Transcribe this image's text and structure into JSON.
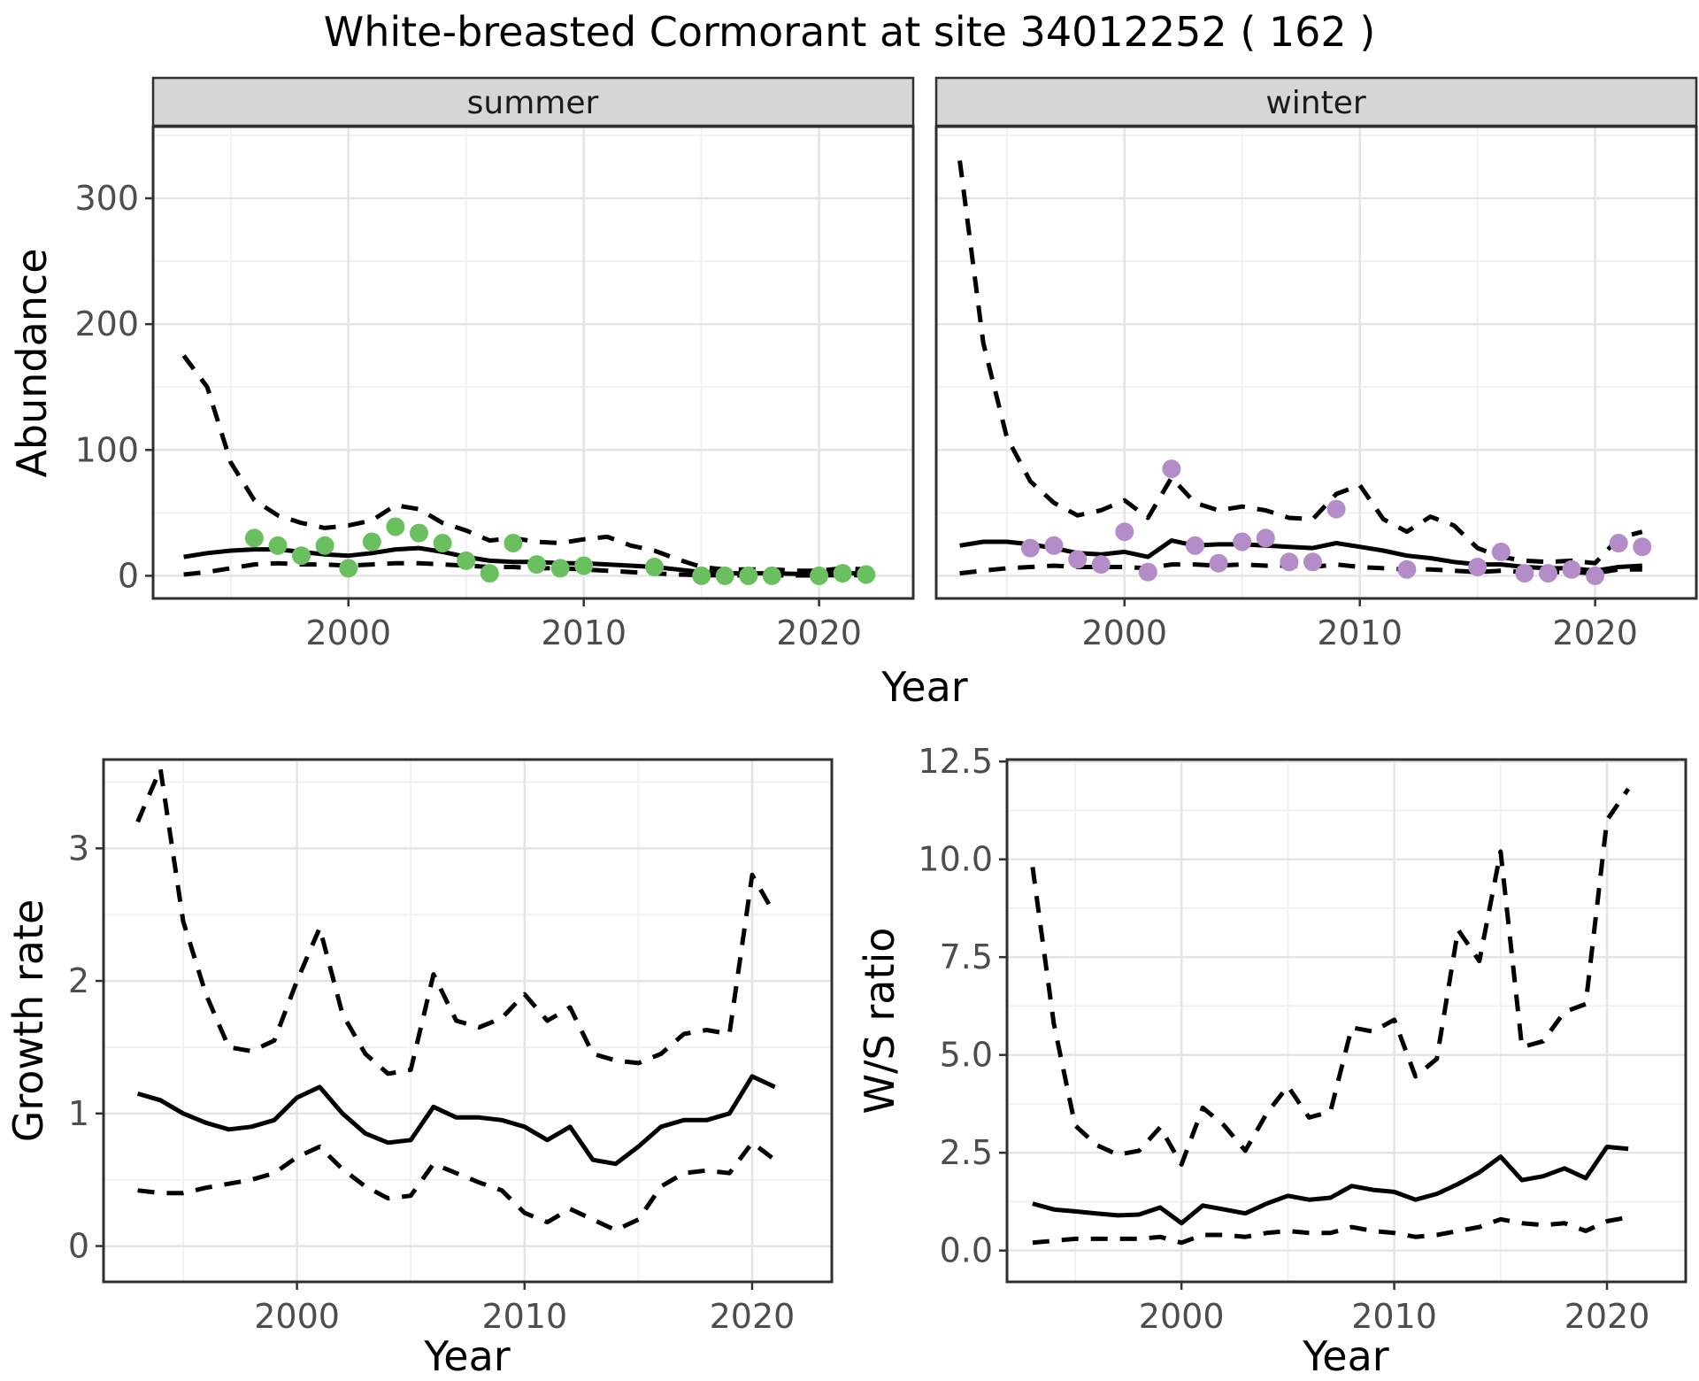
{
  "title": "White-breasted Cormorant at site 34012252 ( 162 )",
  "axes": {
    "abundance": "Abundance",
    "year": "Year",
    "growth_rate": "Growth rate",
    "ws_ratio": "W/S ratio"
  },
  "facets": {
    "summer": "summer",
    "winter": "winter"
  },
  "colors": {
    "summer_point": "#6abf5f",
    "winter_point": "#b48cc8",
    "line": "#000000",
    "strip_bg": "#d6d6d6",
    "panel_border": "#2f2f2f",
    "grid_major": "#e4e4e4",
    "grid_minor": "#f1f1f1",
    "tick_text": "#4d4d4d"
  },
  "chart_data": [
    {
      "id": "abundance_summer",
      "type": "line",
      "facet_label": "summer",
      "xlabel": "Year",
      "ylabel": "Abundance",
      "xlim": [
        1991.7,
        2024
      ],
      "ylim": [
        -18,
        357
      ],
      "grid": true,
      "legend": "none",
      "xticks": {
        "values": [
          2000,
          2010,
          2020
        ],
        "labels": [
          "2000",
          "2010",
          "2020"
        ]
      },
      "yticks": {
        "values": [
          0,
          100,
          200,
          300
        ],
        "labels": [
          "0",
          "100",
          "200",
          "300"
        ]
      },
      "x": [
        1993,
        1994,
        1995,
        1996,
        1997,
        1998,
        1999,
        2000,
        2001,
        2002,
        2003,
        2004,
        2005,
        2006,
        2007,
        2008,
        2009,
        2010,
        2011,
        2012,
        2013,
        2014,
        2015,
        2016,
        2017,
        2018,
        2019,
        2020,
        2021,
        2022
      ],
      "series": [
        {
          "name": "upper_ci",
          "style": "dashed",
          "values": [
            175,
            150,
            90,
            60,
            48,
            42,
            38,
            40,
            44,
            56,
            53,
            42,
            36,
            28,
            30,
            27,
            26,
            29,
            31,
            24,
            20,
            13,
            7,
            5,
            5,
            5,
            4,
            4,
            6,
            5
          ]
        },
        {
          "name": "mean",
          "style": "solid",
          "values": [
            15,
            18,
            20,
            21,
            21,
            19,
            17,
            16,
            18,
            21,
            22,
            19,
            15,
            12,
            11,
            11,
            10,
            10,
            9,
            8,
            7,
            5,
            3,
            2,
            2,
            2,
            1.5,
            1.5,
            2,
            2
          ]
        },
        {
          "name": "lower_ci",
          "style": "dashed",
          "values": [
            1,
            3,
            6,
            9,
            10,
            9,
            9,
            8,
            9,
            10,
            10,
            9,
            8,
            7,
            7,
            6,
            6,
            5,
            4,
            3,
            2,
            1,
            0.5,
            0.3,
            0.3,
            0.3,
            0.3,
            0.3,
            0.5,
            0.4
          ]
        }
      ],
      "points": {
        "color": "#6abf5f",
        "x": [
          1996,
          1997,
          1998,
          1999,
          2000,
          2001,
          2002,
          2003,
          2004,
          2005,
          2006,
          2007,
          2008,
          2009,
          2010,
          2013,
          2015,
          2016,
          2017,
          2018,
          2020,
          2021,
          2022
        ],
        "y": [
          30,
          24,
          16,
          24,
          6,
          27,
          39,
          34,
          26,
          12,
          2,
          26,
          9,
          6,
          8,
          7,
          0,
          0,
          0,
          0,
          0,
          2,
          1
        ]
      }
    },
    {
      "id": "abundance_winter",
      "type": "line",
      "facet_label": "winter",
      "xlabel": "Year",
      "ylabel": "Abundance",
      "xlim": [
        1992,
        2024.3
      ],
      "ylim": [
        -18,
        357
      ],
      "grid": true,
      "legend": "none",
      "xticks": {
        "values": [
          2000,
          2010,
          2020
        ],
        "labels": [
          "2000",
          "2010",
          "2020"
        ]
      },
      "yticks": {
        "values": [
          0,
          100,
          200,
          300
        ],
        "labels": [
          "0",
          "100",
          "200",
          "300"
        ]
      },
      "x": [
        1993,
        1994,
        1995,
        1996,
        1997,
        1998,
        1999,
        2000,
        2001,
        2002,
        2003,
        2004,
        2005,
        2006,
        2007,
        2008,
        2009,
        2010,
        2011,
        2012,
        2013,
        2014,
        2015,
        2016,
        2017,
        2018,
        2019,
        2020,
        2021,
        2022
      ],
      "series": [
        {
          "name": "upper_ci",
          "style": "dashed",
          "values": [
            330,
            185,
            110,
            75,
            58,
            48,
            52,
            60,
            46,
            78,
            58,
            52,
            55,
            52,
            46,
            45,
            65,
            72,
            45,
            35,
            47,
            40,
            22,
            15,
            12,
            11,
            12,
            10,
            30,
            35
          ]
        },
        {
          "name": "mean",
          "style": "solid",
          "values": [
            24,
            27,
            27,
            25,
            22,
            18,
            17,
            19,
            15,
            28,
            24,
            25,
            25,
            24,
            23,
            22,
            26,
            23,
            20,
            16,
            14,
            11,
            9,
            9,
            7,
            6,
            6,
            4,
            7,
            8
          ]
        },
        {
          "name": "lower_ci",
          "style": "dashed",
          "values": [
            2,
            4,
            6,
            7,
            8,
            7,
            7,
            7,
            6,
            9,
            9,
            8,
            9,
            8,
            8,
            7,
            9,
            7,
            6,
            5,
            5,
            4,
            3,
            4,
            3,
            3,
            3,
            2,
            5,
            5
          ]
        }
      ],
      "points": {
        "color": "#b48cc8",
        "x": [
          1996,
          1997,
          1998,
          1999,
          2000,
          2001,
          2002,
          2003,
          2004,
          2005,
          2006,
          2007,
          2008,
          2009,
          2012,
          2015,
          2016,
          2017,
          2018,
          2019,
          2020,
          2021,
          2022
        ],
        "y": [
          22,
          24,
          13,
          9,
          35,
          3,
          85,
          24,
          10,
          27,
          30,
          11,
          11,
          53,
          5,
          7,
          19,
          2,
          2,
          5,
          0,
          26,
          23
        ]
      }
    },
    {
      "id": "growth_rate",
      "type": "line",
      "xlabel": "Year",
      "ylabel": "Growth rate",
      "xlim": [
        1991.5,
        2023.5
      ],
      "ylim": [
        -0.27,
        3.67
      ],
      "grid": true,
      "legend": "none",
      "xticks": {
        "values": [
          2000,
          2010,
          2020
        ],
        "labels": [
          "2000",
          "2010",
          "2020"
        ]
      },
      "yticks": {
        "values": [
          0,
          1,
          2,
          3
        ],
        "labels": [
          "0",
          "1",
          "2",
          "3"
        ]
      },
      "x": [
        1993,
        1994,
        1995,
        1996,
        1997,
        1998,
        1999,
        2000,
        2001,
        2002,
        2003,
        2004,
        2005,
        2006,
        2007,
        2008,
        2009,
        2010,
        2011,
        2012,
        2013,
        2014,
        2015,
        2016,
        2017,
        2018,
        2019,
        2020,
        2021
      ],
      "series": [
        {
          "name": "upper_ci",
          "style": "dashed",
          "values": [
            3.2,
            3.6,
            2.45,
            1.9,
            1.5,
            1.47,
            1.55,
            2.0,
            2.4,
            1.75,
            1.45,
            1.3,
            1.33,
            2.05,
            1.7,
            1.65,
            1.72,
            1.9,
            1.7,
            1.8,
            1.45,
            1.4,
            1.38,
            1.45,
            1.6,
            1.63,
            1.6,
            2.8,
            2.5
          ]
        },
        {
          "name": "mean",
          "style": "solid",
          "values": [
            1.15,
            1.1,
            1.0,
            0.93,
            0.88,
            0.9,
            0.95,
            1.12,
            1.2,
            1.0,
            0.85,
            0.78,
            0.8,
            1.05,
            0.97,
            0.97,
            0.95,
            0.9,
            0.8,
            0.9,
            0.65,
            0.62,
            0.75,
            0.9,
            0.95,
            0.95,
            1.0,
            1.28,
            1.2
          ]
        },
        {
          "name": "lower_ci",
          "style": "dashed",
          "values": [
            0.42,
            0.4,
            0.4,
            0.44,
            0.47,
            0.5,
            0.55,
            0.67,
            0.75,
            0.58,
            0.45,
            0.36,
            0.38,
            0.62,
            0.55,
            0.48,
            0.42,
            0.25,
            0.18,
            0.28,
            0.2,
            0.12,
            0.2,
            0.45,
            0.55,
            0.57,
            0.55,
            0.78,
            0.65
          ]
        }
      ]
    },
    {
      "id": "ws_ratio",
      "type": "line",
      "xlabel": "Year",
      "ylabel": "W/S ratio",
      "xlim": [
        1991.8,
        2023.7
      ],
      "ylim": [
        -0.8,
        12.55
      ],
      "grid": true,
      "legend": "none",
      "xticks": {
        "values": [
          2000,
          2010,
          2020
        ],
        "labels": [
          "2000",
          "2010",
          "2020"
        ]
      },
      "yticks": {
        "values": [
          0,
          2.5,
          5,
          7.5,
          10,
          12.5
        ],
        "labels": [
          "0.0",
          "2.5",
          "5.0",
          "7.5",
          "10.0",
          "12.5"
        ]
      },
      "x": [
        1993,
        1994,
        1995,
        1996,
        1997,
        1998,
        1999,
        2000,
        2001,
        2002,
        2003,
        2004,
        2005,
        2006,
        2007,
        2008,
        2009,
        2010,
        2011,
        2012,
        2013,
        2014,
        2015,
        2016,
        2017,
        2018,
        2019,
        2020,
        2021
      ],
      "series": [
        {
          "name": "upper_ci",
          "style": "dashed",
          "values": [
            9.8,
            5.8,
            3.2,
            2.7,
            2.45,
            2.55,
            3.15,
            2.2,
            3.65,
            3.2,
            2.55,
            3.5,
            4.2,
            3.4,
            3.55,
            5.7,
            5.6,
            5.9,
            4.45,
            4.9,
            8.2,
            7.4,
            10.2,
            5.2,
            5.35,
            6.1,
            6.3,
            11.0,
            11.8
          ]
        },
        {
          "name": "mean",
          "style": "solid",
          "values": [
            1.2,
            1.05,
            1.0,
            0.95,
            0.9,
            0.92,
            1.1,
            0.7,
            1.15,
            1.05,
            0.95,
            1.2,
            1.4,
            1.3,
            1.35,
            1.65,
            1.55,
            1.5,
            1.3,
            1.45,
            1.7,
            2.0,
            2.4,
            1.8,
            1.9,
            2.1,
            1.85,
            2.65,
            2.6
          ]
        },
        {
          "name": "lower_ci",
          "style": "dashed",
          "values": [
            0.2,
            0.25,
            0.3,
            0.3,
            0.3,
            0.3,
            0.35,
            0.2,
            0.4,
            0.4,
            0.35,
            0.45,
            0.5,
            0.45,
            0.45,
            0.6,
            0.5,
            0.45,
            0.35,
            0.4,
            0.5,
            0.6,
            0.8,
            0.7,
            0.65,
            0.7,
            0.5,
            0.75,
            0.85
          ]
        }
      ]
    }
  ]
}
